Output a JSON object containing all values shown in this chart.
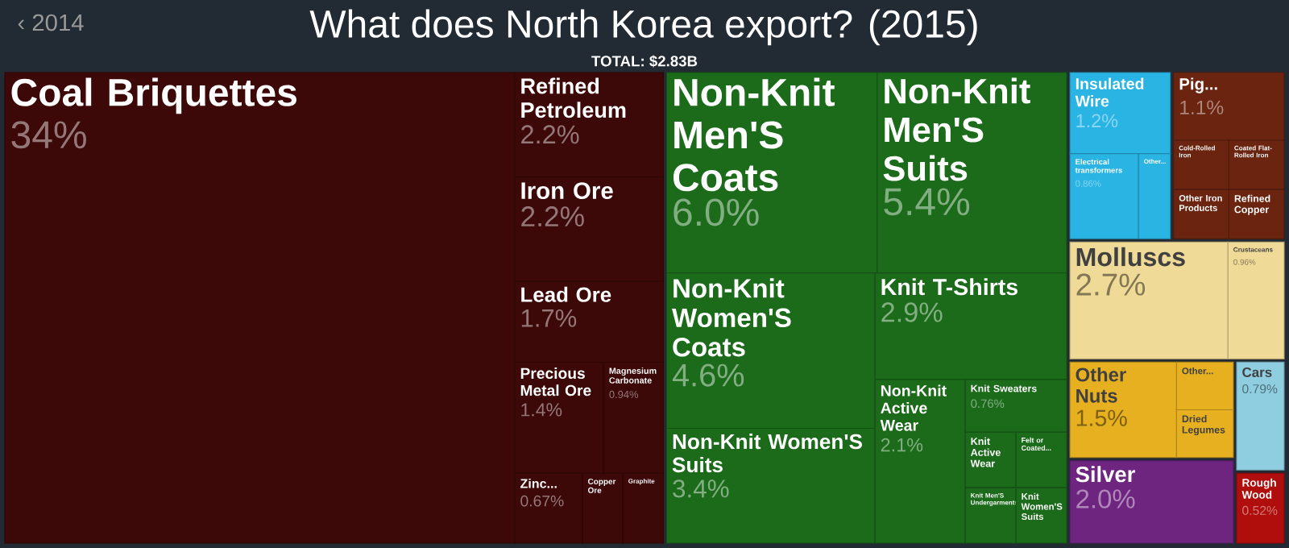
{
  "chart_data": {
    "type": "other",
    "title": "What does North Korea export? (2015)",
    "subtitle": "TOTAL: $2.83B",
    "annotations": [
      "‹ 2014"
    ],
    "categories": [
      "Coal Briquettes",
      "Refined Petroleum",
      "Iron Ore",
      "Lead Ore",
      "Precious Metal Ore",
      "Magnesium Carbonate",
      "Zinc...",
      "Copper Ore",
      "Graphite",
      "Non-Knit Men'S Coats",
      "Non-Knit Men'S Suits",
      "Non-Knit Women'S Coats",
      "Non-Knit Women'S Suits",
      "Knit T-Shirts",
      "Non-Knit Active Wear",
      "Knit Sweaters",
      "Knit Active Wear",
      "Felt or Coated...",
      "Knit Men'S Undergarments",
      "Knit Women'S Suits",
      "Insulated Wire",
      "Electrical transformers",
      "Other...",
      "Pig...",
      "Cold-Rolled Iron",
      "Other Iron Products",
      "Coated Flat-Rolled Iron",
      "Refined Copper",
      "Molluscs",
      "Crustaceans",
      "Other Nuts",
      "Other...",
      "Dried Legumes",
      "Silver",
      "Cars",
      "Rough Wood"
    ],
    "values": [
      34,
      2.2,
      2.2,
      1.7,
      1.4,
      0.94,
      0.67,
      null,
      null,
      6.0,
      5.4,
      4.6,
      3.4,
      2.9,
      2.1,
      0.76,
      null,
      null,
      null,
      null,
      1.2,
      0.86,
      null,
      1.1,
      null,
      null,
      null,
      null,
      2.7,
      0.96,
      1.5,
      null,
      null,
      2.0,
      0.79,
      0.52
    ],
    "value_labels": [
      "34%",
      "2.2%",
      "2.2%",
      "1.7%",
      "1.4%",
      "0.94%",
      "0.67%",
      null,
      null,
      "6.0%",
      "5.4%",
      "4.6%",
      "3.4%",
      "2.9%",
      "2.1%",
      "0.76%",
      null,
      null,
      null,
      null,
      "1.2%",
      "0.86%",
      null,
      "1.1%",
      null,
      null,
      null,
      null,
      "2.7%",
      "0.96%",
      "1.5%",
      null,
      null,
      "2.0%",
      "0.79%",
      "0.52%"
    ],
    "colors": [
      "#3d0808",
      "#3d0808",
      "#3d0808",
      "#3d0808",
      "#3d0808",
      "#3d0808",
      "#3d0808",
      "#3d0808",
      "#3d0808",
      "#1b6b1b",
      "#1b6b1b",
      "#1b6b1b",
      "#1b6b1b",
      "#1b6b1b",
      "#1b6b1b",
      "#1b6b1b",
      "#1b6b1b",
      "#1b6b1b",
      "#1b6b1b",
      "#1b6b1b",
      "#2ab4e4",
      "#2ab4e4",
      "#2ab4e4",
      "#6a2410",
      "#6a2410",
      "#6a2410",
      "#6a2410",
      "#6a2410",
      "#f0da98",
      "#f0da98",
      "#e6b020",
      "#e6b020",
      "#e6b020",
      "#6e2580",
      "#8fcde0",
      "#b00d0d"
    ]
  }
}
